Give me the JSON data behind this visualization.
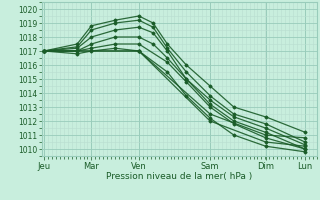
{
  "xlabel": "Pression niveau de la mer( hPa )",
  "bg_color": "#c8eedd",
  "grid_major_color": "#99ccbb",
  "grid_minor_color": "#b8ddd0",
  "line_color": "#1a5c28",
  "ylim": [
    1009.5,
    1020.5
  ],
  "yticks": [
    1010,
    1011,
    1012,
    1013,
    1014,
    1015,
    1016,
    1017,
    1018,
    1019,
    1020
  ],
  "xtick_labels": [
    "Jeu",
    "Mar",
    "Ven",
    "Sam",
    "Dim",
    "Lun"
  ],
  "day_x": [
    0.0,
    1.0,
    2.0,
    3.5,
    4.67,
    5.5
  ],
  "xlim": [
    -0.05,
    5.75
  ],
  "ensemble": [
    {
      "x": [
        0.0,
        0.7,
        1.0,
        1.5,
        2.0,
        2.3,
        2.6,
        3.0,
        3.5,
        4.0,
        4.67,
        5.5
      ],
      "y": [
        1017.0,
        1017.5,
        1018.8,
        1019.2,
        1019.5,
        1019.0,
        1017.5,
        1016.0,
        1014.5,
        1013.0,
        1012.3,
        1011.2
      ]
    },
    {
      "x": [
        0.0,
        0.7,
        1.0,
        1.5,
        2.0,
        2.3,
        2.6,
        3.0,
        3.5,
        4.0,
        4.67,
        5.5
      ],
      "y": [
        1017.0,
        1017.3,
        1018.5,
        1019.0,
        1019.2,
        1018.7,
        1017.2,
        1015.5,
        1013.8,
        1012.5,
        1011.8,
        1010.5
      ]
    },
    {
      "x": [
        0.0,
        0.7,
        1.0,
        1.5,
        2.0,
        2.3,
        2.6,
        3.0,
        3.5,
        4.0,
        4.67,
        5.5
      ],
      "y": [
        1017.0,
        1017.2,
        1018.0,
        1018.5,
        1018.7,
        1018.3,
        1017.0,
        1015.0,
        1013.2,
        1012.0,
        1011.2,
        1010.0
      ]
    },
    {
      "x": [
        0.0,
        0.7,
        1.0,
        1.5,
        2.0,
        2.3,
        2.6,
        3.0,
        3.5,
        4.0,
        4.67,
        5.5
      ],
      "y": [
        1017.0,
        1017.0,
        1017.5,
        1018.0,
        1018.0,
        1017.5,
        1016.5,
        1015.0,
        1013.5,
        1012.3,
        1011.5,
        1010.3
      ]
    },
    {
      "x": [
        0.0,
        0.7,
        1.0,
        1.5,
        2.0,
        2.6,
        3.0,
        3.5,
        4.0,
        4.67,
        5.5
      ],
      "y": [
        1017.0,
        1017.0,
        1017.2,
        1017.5,
        1017.5,
        1016.2,
        1014.8,
        1013.0,
        1011.8,
        1010.8,
        1010.0
      ]
    },
    {
      "x": [
        0.0,
        0.7,
        1.0,
        1.5,
        2.0,
        2.6,
        3.0,
        3.5,
        4.0,
        4.67,
        5.5
      ],
      "y": [
        1017.0,
        1016.8,
        1017.0,
        1017.2,
        1017.0,
        1015.5,
        1013.8,
        1012.2,
        1011.0,
        1010.2,
        1009.8
      ]
    },
    {
      "x": [
        0.0,
        2.0,
        3.5,
        4.67,
        5.5
      ],
      "y": [
        1017.0,
        1017.0,
        1012.5,
        1011.0,
        1010.8
      ]
    },
    {
      "x": [
        0.0,
        2.0,
        3.5,
        4.67,
        5.5
      ],
      "y": [
        1017.0,
        1017.0,
        1012.0,
        1010.5,
        1010.2
      ]
    }
  ],
  "marker_x_sets": [
    [
      0.0,
      0.5,
      1.0,
      1.5,
      2.0,
      2.3,
      2.6,
      3.0,
      3.5,
      4.0,
      4.67,
      5.5
    ],
    [
      0.0,
      0.5,
      1.0,
      1.5,
      2.0,
      2.3,
      2.6,
      3.0,
      3.5,
      4.0,
      4.67,
      5.5
    ]
  ]
}
